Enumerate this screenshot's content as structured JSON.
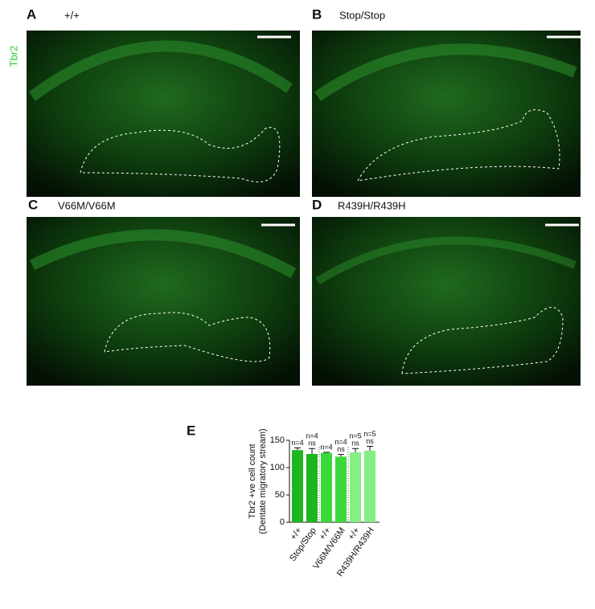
{
  "side_label": "Tbr2",
  "panels": [
    {
      "label": "A",
      "title": "+/+"
    },
    {
      "label": "B",
      "title": "Stop/Stop"
    },
    {
      "label": "C",
      "title": "V66M/V66M"
    },
    {
      "label": "D",
      "title": "R439H/R439H"
    }
  ],
  "chart_label": "E",
  "chart_data": {
    "type": "bar",
    "y_label_lines": [
      "Tbr2 +ve cell count",
      "(Dentate migratory stream)"
    ],
    "categories": [
      "+/+",
      "Stop/Stop",
      "+/+",
      "V66M/V66M",
      "+/+",
      "R439H/R439H"
    ],
    "values": [
      132,
      125,
      127,
      120,
      128,
      131
    ],
    "errors": [
      4,
      10,
      1,
      4,
      7,
      8
    ],
    "colors": [
      "#1fb51f",
      "#1fb51f",
      "#3ad83a",
      "#3ad83a",
      "#84f084",
      "#84f084"
    ],
    "annotations": [
      [
        "n=4"
      ],
      [
        "n=4",
        "ns"
      ],
      [
        "n=4"
      ],
      [
        "n=4",
        "ns"
      ],
      [
        "n=5",
        "ns"
      ],
      [
        "n=5",
        "ns"
      ]
    ],
    "ylim": [
      0,
      150
    ],
    "yticks": [
      0,
      50,
      100,
      150
    ]
  }
}
